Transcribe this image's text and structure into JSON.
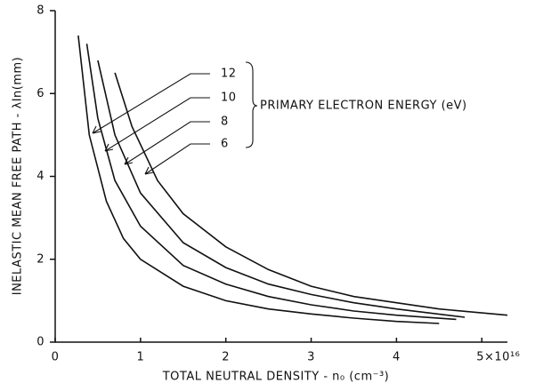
{
  "chart_data": {
    "type": "line",
    "y_label": "INELASTIC MEAN FREE PATH - λIn(mm)",
    "x_label": "TOTAL NEUTRAL DENSITY - n₀ (cm⁻³)",
    "annotation": "PRIMARY ELECTRON ENERGY (eV)",
    "xlim": [
      0,
      5.3
    ],
    "ylim": [
      0,
      8
    ],
    "xticks": [
      0,
      1,
      2,
      3,
      4,
      {
        "value": 5,
        "label": "5×10¹⁶"
      }
    ],
    "yticks": [
      0,
      2,
      4,
      6,
      8
    ],
    "series": [
      {
        "name": "12",
        "color": "#111111",
        "x": [
          0.27,
          0.4,
          0.6,
          0.8,
          1.0,
          1.5,
          2,
          2.5,
          3,
          3.5,
          4,
          4.5
        ],
        "values": [
          7.4,
          5.0,
          3.4,
          2.5,
          2.0,
          1.35,
          1.0,
          0.8,
          0.68,
          0.58,
          0.5,
          0.45
        ]
      },
      {
        "name": "10",
        "color": "#111111",
        "x": [
          0.37,
          0.5,
          0.7,
          1,
          1.5,
          2,
          2.5,
          3,
          3.5,
          4,
          4.7
        ],
        "values": [
          7.2,
          5.4,
          3.9,
          2.8,
          1.85,
          1.4,
          1.1,
          0.9,
          0.75,
          0.65,
          0.55
        ]
      },
      {
        "name": "8",
        "color": "#111111",
        "x": [
          0.5,
          0.7,
          1,
          1.5,
          2,
          2.5,
          3,
          3.5,
          4,
          4.8
        ],
        "values": [
          6.8,
          5.0,
          3.6,
          2.4,
          1.8,
          1.4,
          1.15,
          0.95,
          0.8,
          0.6
        ]
      },
      {
        "name": "6",
        "color": "#111111",
        "x": [
          0.7,
          0.9,
          1.2,
          1.5,
          2,
          2.5,
          3,
          3.5,
          4,
          4.5,
          5.3
        ],
        "values": [
          6.5,
          5.2,
          3.9,
          3.1,
          2.3,
          1.75,
          1.35,
          1.1,
          0.95,
          0.8,
          0.65
        ]
      }
    ]
  }
}
